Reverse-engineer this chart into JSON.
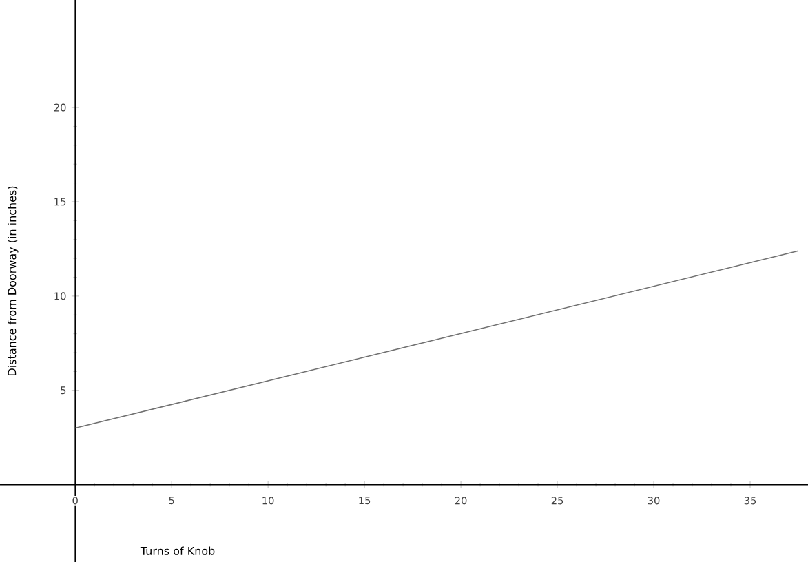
{
  "chart_data": {
    "type": "line",
    "xlabel": "Turns of Knob",
    "ylabel": "Distance from Doorway (in inches)",
    "xlim": [
      -3.9,
      38
    ],
    "ylim": [
      -4.1,
      25.7
    ],
    "xticks": [
      0,
      5,
      10,
      15,
      20,
      25,
      30,
      35
    ],
    "yticks": [
      5,
      10,
      15,
      20
    ],
    "series": [
      {
        "x": [
          0,
          37.5
        ],
        "values": [
          3,
          12.4
        ],
        "color": "#707070"
      }
    ],
    "marker": "none",
    "line_style": "solid"
  }
}
